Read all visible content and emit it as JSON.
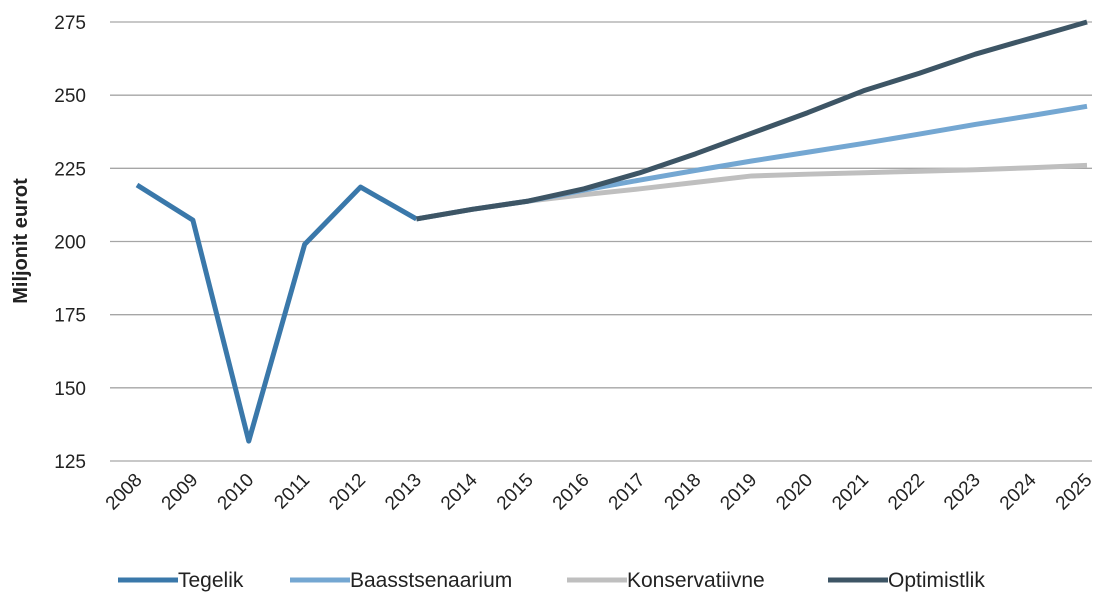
{
  "chart_data": {
    "type": "line",
    "ylabel": "Miljonit eurot",
    "categories": [
      "2008",
      "2009",
      "2010",
      "2011",
      "2012",
      "2013",
      "2014",
      "2015",
      "2016",
      "2017",
      "2018",
      "2019",
      "2020",
      "2021",
      "2022",
      "2023",
      "2024",
      "2025"
    ],
    "series": [
      {
        "name": "Tegelik",
        "color": "#3a78aa",
        "values": [
          219.3,
          207.3,
          131.8,
          199,
          218.6,
          207.7,
          null,
          null,
          null,
          null,
          null,
          null,
          null,
          null,
          null,
          null,
          null,
          null
        ]
      },
      {
        "name": "Baasstsenaarium",
        "color": "#74a7d2",
        "values": [
          null,
          null,
          null,
          null,
          null,
          207.7,
          211,
          213.8,
          217.6,
          221,
          224.3,
          227.5,
          230.5,
          233.5,
          236.7,
          240,
          243,
          246.2
        ]
      },
      {
        "name": "Konservatiivne",
        "color": "#bfbfbf",
        "values": [
          null,
          null,
          null,
          null,
          null,
          207.7,
          211,
          213.8,
          216,
          218,
          220.2,
          222.4,
          223,
          223.5,
          224,
          224.5,
          225.2,
          226
        ]
      },
      {
        "name": "Optimistlik",
        "color": "#3d5565",
        "values": [
          null,
          null,
          null,
          null,
          null,
          207.7,
          211,
          213.8,
          218,
          223.5,
          230,
          237,
          244,
          251.5,
          257.5,
          264,
          269.5,
          275
        ]
      }
    ],
    "draw_order": [
      0,
      2,
      1,
      3
    ],
    "ylim": [
      125,
      275
    ],
    "yticks": [
      125,
      150,
      175,
      200,
      225,
      250,
      275
    ],
    "grid": true,
    "legend": "bottom"
  }
}
